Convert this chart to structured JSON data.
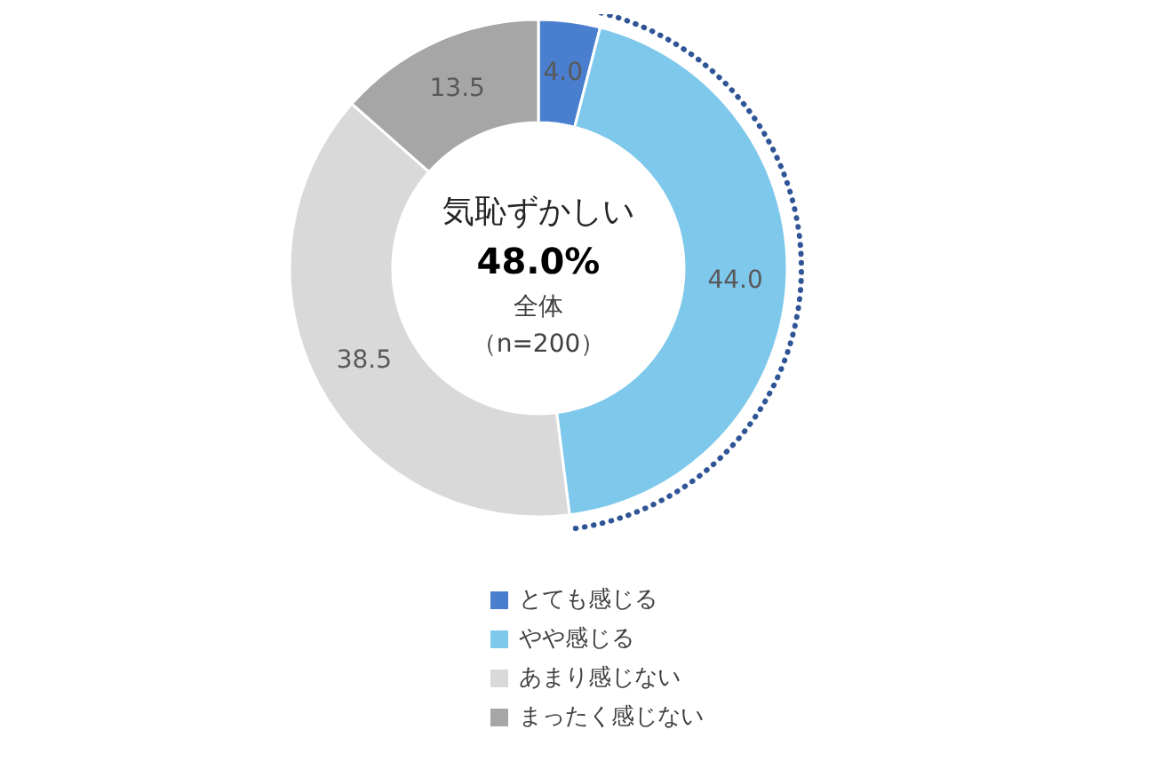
{
  "chart_data": {
    "type": "donut",
    "categories": [
      "とても感じる",
      "やや感じる",
      "あまり感じない",
      "まったく感じない"
    ],
    "values": [
      4.0,
      44.0,
      38.5,
      13.5
    ],
    "colors": [
      "#4a7fcf",
      "#7ec8ec",
      "#d9d9d9",
      "#a6a6a6"
    ],
    "value_labels": [
      "4.0",
      "44.0",
      "38.5",
      "13.5"
    ],
    "annotations": [
      "気恥ずかしい",
      "48.0%",
      "全体",
      "（n=200）"
    ],
    "legend": "bottom"
  }
}
